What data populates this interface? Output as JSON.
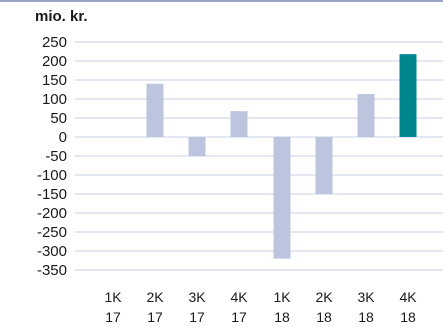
{
  "chart_data": {
    "type": "bar",
    "unit_label": "mio. kr.",
    "categories": [
      [
        "1K",
        "17"
      ],
      [
        "2K",
        "17"
      ],
      [
        "3K",
        "17"
      ],
      [
        "4K",
        "17"
      ],
      [
        "1K",
        "18"
      ],
      [
        "2K",
        "18"
      ],
      [
        "3K",
        "18"
      ],
      [
        "4K",
        "18"
      ]
    ],
    "values": [
      0,
      140,
      -50,
      68,
      -320,
      -150,
      113,
      218
    ],
    "yticks": [
      250,
      200,
      150,
      100,
      50,
      0,
      -50,
      -100,
      -150,
      -200,
      -250,
      -300,
      -350
    ],
    "ylim": [
      -350,
      250
    ],
    "grid": true,
    "colors": {
      "bar": "#bcc4de",
      "highlight": "#00868f",
      "grid": "#c9d1e6",
      "top_rule": "#9aa6c8"
    },
    "highlight_index": 7
  }
}
